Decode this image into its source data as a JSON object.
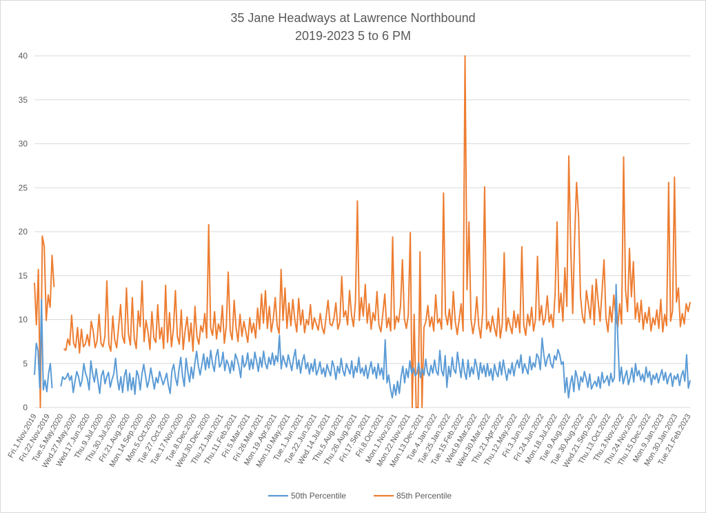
{
  "chart_data": {
    "type": "line",
    "title": [
      "35 Jane Headways at Lawrence Northbound",
      "2019-2023 5 to 6 PM"
    ],
    "xlabel": "",
    "ylabel": "",
    "ylim": [
      0,
      40
    ],
    "y_ticks": [
      0,
      5,
      10,
      15,
      20,
      25,
      30,
      35,
      40
    ],
    "grid": "horizontal",
    "legend": "bottom",
    "x_tick_labels": [
      "Fri.1.Nov.2019",
      "Fri.22.Nov.2019",
      "Tue.5.May.2020",
      "Wed.27.May.2020",
      "Wed.17.Jun.2020",
      "Thu.9.Jul.2020",
      "Thu.30.Jul.2020",
      "Fri.21.Aug.2020",
      "Mon.14.Sep.2020",
      "Mon.5.Oct.2020",
      "Tue.27.Oct.2020",
      "Tue.17.Nov.2020",
      "Tue.8.Dec.2020",
      "Wed.30.Dec.2020",
      "Thu.21.Jan.2021",
      "Thu.11.Feb.2021",
      "Fri.5.Mar.2021",
      "Fri.26.Mar.2021",
      "Mon.19.Apr.2021",
      "Mon.10.May.2021",
      "Tue.1.Jun.2021",
      "Tue.22.Jun.2021",
      "Wed.14.Jul.2021",
      "Thu.5.Aug.2021",
      "Thu.26.Aug.2021",
      "Fri.17.Sep.2021",
      "Fri.8.Oct.2021",
      "Mon.1.Nov.2021",
      "Mon.22.Nov.2021",
      "Mon.13.Dec.2021",
      "Tue.4.Jan.2022",
      "Tue.25.Jan.2022",
      "Tue.15.Feb.2022",
      "Wed.9.Mar.2022",
      "Wed.30.Mar.2022",
      "Thu.21.Apr.2022",
      "Thu.12.May.2022",
      "Fri.3.Jun.2022",
      "Fri.24.Jun.2022",
      "Mon.18.Jul.2022",
      "Tue.9.Aug.2022",
      "Tue.30.Aug.2022",
      "Wed.21.Sep.2022",
      "Thu.13.Oct.2022",
      "Thu.3.Nov.2022",
      "Thu.24.Nov.2022",
      "Thu.15.Dec.2022",
      "Mon.9.Jan.2023",
      "Mon.30.Jan.2023",
      "Tue.21.Feb.2023"
    ],
    "series": [
      {
        "name": "50th Percentile",
        "color": "#5b9bd5",
        "values": [
          3.7,
          7.3,
          6.5,
          2.2,
          12.3,
          2.0,
          3.1,
          1.8,
          3.9,
          5.0,
          2.2,
          null,
          null,
          null,
          null,
          2.4,
          3.5,
          3.2,
          3.4,
          3.9,
          3.1,
          3.6,
          1.7,
          3.0,
          4.1,
          3.5,
          2.4,
          3.1,
          5.0,
          3.9,
          3.3,
          2.0,
          5.3,
          3.8,
          2.9,
          4.4,
          3.0,
          1.6,
          3.6,
          4.2,
          2.7,
          3.5,
          4.0,
          2.3,
          3.2,
          3.8,
          5.6,
          3.3,
          2.0,
          3.5,
          1.7,
          3.6,
          4.3,
          1.9,
          3.9,
          2.0,
          3.4,
          1.5,
          4.2,
          3.6,
          2.0,
          3.8,
          4.9,
          3.6,
          2.3,
          3.1,
          4.5,
          3.3,
          2.1,
          3.4,
          2.8,
          4.1,
          3.3,
          2.6,
          3.2,
          3.9,
          2.5,
          1.6,
          4.2,
          4.9,
          3.4,
          2.5,
          4.3,
          5.7,
          3.6,
          2.4,
          5.6,
          4.1,
          2.9,
          4.6,
          3.3,
          5.0,
          6.4,
          4.7,
          3.7,
          4.9,
          6.1,
          4.3,
          5.7,
          4.5,
          6.5,
          5.0,
          4.1,
          5.8,
          6.6,
          4.6,
          5.0,
          6.3,
          4.2,
          5.4,
          4.9,
          3.9,
          5.3,
          4.2,
          6.1,
          5.5,
          4.7,
          3.4,
          5.9,
          4.6,
          5.0,
          6.2,
          4.3,
          5.5,
          4.4,
          6.3,
          5.3,
          4.1,
          5.7,
          4.6,
          6.4,
          5.0,
          4.4,
          5.7,
          4.9,
          6.2,
          4.8,
          5.9,
          5.2,
          8.2,
          4.4,
          5.9,
          5.2,
          4.6,
          6.0,
          5.1,
          4.2,
          5.6,
          6.6,
          4.4,
          5.4,
          3.9,
          5.3,
          6.0,
          4.4,
          5.1,
          3.8,
          5.0,
          4.1,
          5.5,
          3.7,
          4.3,
          5.2,
          3.8,
          4.5,
          3.5,
          4.9,
          4.2,
          3.6,
          5.3,
          4.6,
          3.2,
          4.7,
          3.9,
          5.6,
          4.2,
          3.6,
          5.0,
          4.4,
          3.8,
          5.3,
          3.4,
          4.7,
          4.0,
          5.7,
          3.9,
          4.5,
          3.6,
          4.8,
          3.3,
          4.3,
          5.2,
          3.8,
          4.6,
          3.3,
          5.0,
          3.7,
          4.5,
          3.2,
          7.7,
          2.8,
          3.7,
          2.1,
          1.1,
          2.6,
          1.4,
          3.0,
          1.6,
          3.5,
          4.7,
          2.8,
          4.4,
          3.4,
          5.3,
          3.9,
          4.5,
          3.6,
          3.9,
          5.1,
          3.4,
          4.4,
          3.7,
          5.5,
          4.0,
          3.6,
          4.8,
          3.9,
          5.4,
          4.1,
          3.7,
          6.5,
          4.2,
          3.6,
          5.9,
          2.3,
          4.7,
          3.5,
          5.7,
          4.3,
          3.9,
          6.3,
          4.8,
          3.4,
          5.5,
          4.0,
          3.2,
          5.4,
          3.5,
          4.6,
          3.8,
          5.5,
          4.6,
          3.2,
          5.1,
          3.9,
          4.8,
          3.5,
          5.0,
          3.6,
          4.4,
          3.1,
          4.9,
          4.0,
          3.5,
          5.2,
          3.7,
          5.4,
          4.2,
          3.1,
          4.4,
          3.8,
          5.1,
          3.6,
          4.8,
          5.4,
          4.5,
          6.0,
          3.9,
          5.0,
          4.4,
          3.8,
          5.8,
          4.3,
          5.1,
          4.6,
          6.1,
          5.7,
          4.3,
          7.9,
          6.0,
          4.7,
          5.6,
          6.1,
          5.0,
          4.5,
          5.9,
          5.4,
          6.6,
          6.0,
          4.9,
          5.2,
          1.7,
          3.4,
          1.1,
          2.7,
          3.6,
          1.8,
          4.2,
          3.4,
          2.0,
          3.5,
          2.9,
          4.1,
          3.3,
          2.3,
          3.8,
          2.1,
          2.6,
          3.0,
          2.4,
          3.5,
          2.2,
          4.0,
          2.8,
          3.1,
          3.6,
          2.5,
          3.9,
          2.9,
          3.4,
          14.0,
          7.6,
          3.0,
          4.6,
          2.7,
          3.5,
          4.2,
          2.6,
          3.4,
          4.5,
          2.9,
          5.0,
          3.6,
          4.2,
          3.1,
          3.8,
          2.9,
          4.6,
          3.4,
          4.1,
          2.6,
          3.7,
          3.2,
          3.9,
          2.8,
          3.6,
          4.3,
          3.1,
          4.0,
          2.7,
          3.5,
          3.9,
          2.4,
          3.6,
          3.2,
          3.8,
          2.5,
          3.6,
          4.2,
          3.0,
          6.0,
          2.2,
          3.1
        ]
      },
      {
        "name": "85th Percentile",
        "color": "#ed7d31",
        "values": [
          14.2,
          9.4,
          15.7,
          0.0,
          19.5,
          18.3,
          9.9,
          12.8,
          11.4,
          17.3,
          13.7,
          null,
          null,
          null,
          null,
          6.7,
          6.5,
          7.8,
          7.1,
          10.5,
          7.3,
          6.8,
          9.1,
          6.2,
          8.9,
          6.9,
          7.2,
          8.3,
          7.0,
          9.8,
          8.7,
          6.8,
          7.6,
          10.6,
          7.3,
          6.9,
          8.1,
          14.4,
          7.2,
          6.4,
          10.4,
          7.7,
          6.8,
          9.2,
          11.7,
          8.1,
          7.3,
          13.6,
          8.4,
          7.1,
          12.5,
          7.8,
          6.7,
          11.0,
          9.2,
          14.4,
          7.5,
          9.9,
          8.6,
          6.6,
          10.9,
          7.9,
          7.4,
          11.7,
          7.8,
          9.1,
          6.7,
          13.9,
          7.4,
          10.8,
          6.9,
          9.0,
          13.3,
          8.1,
          7.2,
          11.1,
          6.6,
          8.8,
          10.3,
          7.5,
          9.6,
          6.4,
          11.5,
          8.1,
          7.2,
          9.3,
          8.6,
          10.7,
          7.9,
          20.8,
          9.1,
          8.2,
          10.9,
          7.8,
          9.5,
          8.6,
          11.6,
          7.3,
          9.2,
          15.4,
          8.7,
          7.7,
          12.2,
          9.1,
          7.5,
          10.6,
          8.1,
          9.8,
          8.6,
          7.4,
          10.2,
          8.5,
          9.6,
          7.9,
          11.3,
          8.9,
          12.9,
          9.6,
          13.3,
          9.0,
          11.5,
          8.6,
          10.0,
          12.5,
          9.3,
          8.4,
          15.7,
          9.9,
          13.6,
          9.0,
          11.9,
          9.3,
          12.3,
          10.0,
          8.6,
          12.4,
          9.4,
          11.1,
          8.5,
          10.0,
          9.4,
          11.7,
          8.9,
          10.2,
          9.5,
          8.8,
          10.7,
          9.1,
          8.4,
          10.3,
          12.2,
          9.5,
          9.3,
          10.1,
          11.9,
          8.9,
          9.7,
          14.9,
          10.3,
          11.0,
          9.4,
          13.3,
          10.5,
          9.2,
          12.1,
          23.5,
          9.9,
          12.5,
          10.4,
          14.0,
          9.6,
          11.8,
          8.9,
          10.8,
          9.9,
          13.2,
          9.4,
          8.6,
          10.7,
          12.9,
          9.1,
          10.2,
          8.7,
          19.4,
          8.9,
          10.4,
          9.7,
          11.5,
          16.8,
          10.1,
          9.0,
          10.5,
          19.9,
          0.0,
          10.6,
          0.0,
          0.0,
          17.7,
          0.0,
          9.1,
          9.8,
          11.6,
          9.2,
          10.3,
          8.7,
          12.8,
          9.6,
          10.1,
          8.9,
          24.4,
          10.7,
          9.4,
          11.2,
          8.9,
          13.2,
          9.8,
          8.3,
          10.0,
          11.8,
          8.7,
          41.0,
          13.4,
          21.1,
          10.1,
          8.4,
          9.7,
          12.6,
          9.3,
          7.9,
          10.8,
          25.1,
          8.9,
          9.8,
          8.6,
          10.4,
          9.1,
          8.1,
          11.3,
          7.9,
          9.5,
          17.6,
          8.7,
          10.2,
          9.3,
          8.4,
          11.0,
          9.1,
          10.6,
          8.5,
          18.3,
          9.4,
          8.2,
          10.6,
          9.3,
          11.4,
          8.7,
          10.0,
          17.2,
          9.9,
          11.6,
          9.4,
          10.2,
          12.7,
          9.7,
          10.6,
          9.1,
          12.9,
          21.1,
          10.8,
          13.0,
          9.8,
          15.9,
          11.5,
          28.6,
          18.3,
          10.7,
          19.4,
          25.6,
          21.7,
          12.6,
          10.3,
          9.6,
          13.3,
          11.7,
          10.1,
          13.9,
          9.4,
          14.6,
          12.1,
          9.8,
          13.3,
          16.8,
          10.2,
          8.6,
          11.5,
          9.7,
          12.8,
          10.3,
          9.1,
          11.8,
          9.5,
          28.5,
          13.4,
          10.9,
          18.1,
          12.6,
          16.6,
          10.1,
          11.9,
          9.7,
          12.2,
          8.9,
          10.8,
          9.6,
          11.4,
          8.7,
          10.2,
          9.4,
          11.1,
          9.0,
          12.3,
          8.6,
          10.6,
          9.3,
          25.6,
          9.8,
          11.0,
          26.2,
          12.0,
          13.6,
          9.2,
          10.7,
          9.5,
          11.8,
          10.9,
          12.0
        ]
      }
    ]
  }
}
